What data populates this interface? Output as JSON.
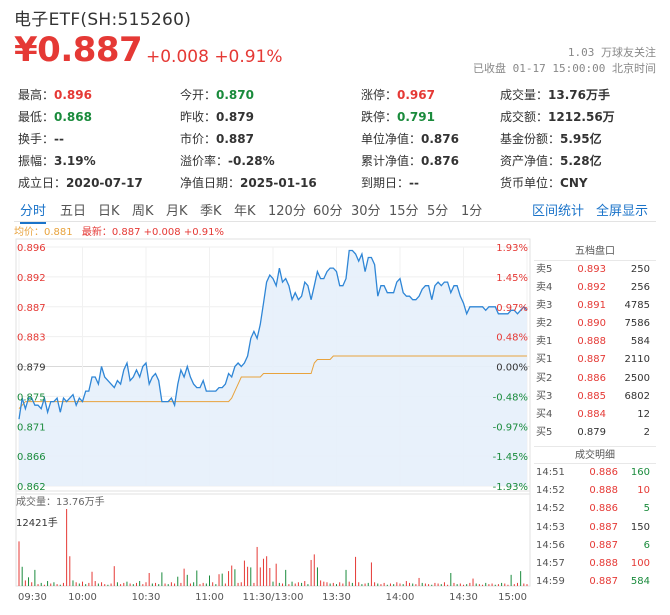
{
  "header": {
    "title": "电子ETF(SH:515260)",
    "price": "¥0.887",
    "change": "+0.008 +0.91%",
    "followers_num": "1.03",
    "followers_label": "万球友关注",
    "status_text": "已收盘",
    "status_time": "01-17 15:00:00",
    "status_tz": "北京时间"
  },
  "quote": {
    "rows": [
      [
        {
          "label": "最高：",
          "value": "0.896",
          "color": "red"
        },
        {
          "label": "今开：",
          "value": "0.870",
          "color": "green"
        },
        {
          "label": "涨停：",
          "value": "0.967",
          "color": "red"
        },
        {
          "label": "成交量：",
          "value": "13.76万手",
          "color": ""
        }
      ],
      [
        {
          "label": "最低：",
          "value": "0.868",
          "color": "green"
        },
        {
          "label": "昨收：",
          "value": "0.879",
          "color": ""
        },
        {
          "label": "跌停：",
          "value": "0.791",
          "color": "green"
        },
        {
          "label": "成交额：",
          "value": "1212.56万",
          "color": ""
        }
      ],
      [
        {
          "label": "换手：",
          "value": "--",
          "color": ""
        },
        {
          "label": "市价：",
          "value": "0.887",
          "color": ""
        },
        {
          "label": "单位净值：",
          "value": "0.876",
          "color": ""
        },
        {
          "label": "基金份额：",
          "value": "5.95亿",
          "color": ""
        }
      ],
      [
        {
          "label": "振幅：",
          "value": "3.19%",
          "color": ""
        },
        {
          "label": "溢价率：",
          "value": "-0.28%",
          "color": ""
        },
        {
          "label": "累计净值：",
          "value": "0.876",
          "color": ""
        },
        {
          "label": "资产净值：",
          "value": "5.28亿",
          "color": ""
        }
      ],
      [
        {
          "label": "成立日：",
          "value": "2020-07-17",
          "color": ""
        },
        {
          "label": "净值日期：",
          "value": "2025-01-16",
          "color": ""
        },
        {
          "label": "到期日：",
          "value": "--",
          "color": ""
        },
        {
          "label": "货币单位：",
          "value": "CNY",
          "color": ""
        }
      ]
    ]
  },
  "tabs": [
    "分时",
    "五日",
    "日K",
    "周K",
    "月K",
    "季K",
    "年K",
    "120分",
    "60分",
    "30分",
    "15分",
    "5分",
    "1分"
  ],
  "active_tab": "分时",
  "tabs_right": [
    "区间统计",
    "全屏显示"
  ],
  "legend": {
    "avg": "均价：0.881",
    "last": "最新：0.887 +0.008 +0.91%"
  },
  "colors": {
    "up": "#e53935",
    "down": "#1a8b3c",
    "price_line": "#2f86d6",
    "avg_line": "#e8a33d",
    "accent": "#1a73c9"
  },
  "chart_data": {
    "type": "line",
    "prev_close": 0.879,
    "y_ticks": [
      "0.896",
      "0.892",
      "0.887",
      "0.883",
      "0.879",
      "0.875",
      "0.871",
      "0.866",
      "0.862"
    ],
    "pct_ticks": [
      "1.93%",
      "1.45%",
      "0.97%",
      "0.48%",
      "0.00%",
      "-0.48%",
      "-0.97%",
      "-1.45%",
      "-1.93%"
    ],
    "ylim": [
      0.862,
      0.896
    ],
    "x_ticks": [
      "09:30",
      "10:00",
      "10:30",
      "11:00",
      "11:30/13:00",
      "13:30",
      "14:00",
      "14:30",
      "15:00"
    ],
    "price_series": [
      0.8715,
      0.8745,
      0.873,
      0.8745,
      0.8745,
      0.8735,
      0.8735,
      0.873,
      0.8745,
      0.8725,
      0.874,
      0.874,
      0.8745,
      0.8725,
      0.8745,
      0.874,
      0.8745,
      0.875,
      0.8735,
      0.8745,
      0.874,
      0.8755,
      0.8755,
      0.8775,
      0.8775,
      0.8765,
      0.879,
      0.8775,
      0.877,
      0.8765,
      0.876,
      0.877,
      0.8765,
      0.8785,
      0.8795,
      0.877,
      0.8775,
      0.8785,
      0.8775,
      0.879,
      0.8795,
      0.8765,
      0.8775,
      0.878,
      0.877,
      0.874,
      0.874,
      0.874,
      0.8745,
      0.8735,
      0.8765,
      0.8785,
      0.8775,
      0.879,
      0.8775,
      0.8765,
      0.876,
      0.876,
      0.877,
      0.8755,
      0.8755,
      0.8755,
      0.8755,
      0.876,
      0.876,
      0.8765,
      0.878,
      0.8775,
      0.879,
      0.8795,
      0.879,
      0.8795,
      0.8805,
      0.883,
      0.884,
      0.883,
      0.885,
      0.888,
      0.891,
      0.892,
      0.8915,
      0.8905,
      0.893,
      0.891,
      0.8915,
      0.8905,
      0.8885,
      0.8895,
      0.8885,
      0.889,
      0.891,
      0.8905,
      0.8885,
      0.8905,
      0.8925,
      0.8915,
      0.8915,
      0.8925,
      0.893,
      0.893,
      0.8925,
      0.8905,
      0.8905,
      0.8915,
      0.8955,
      0.8955,
      0.895,
      0.894,
      0.895,
      0.8925,
      0.8945,
      0.8945,
      0.8935,
      0.889,
      0.8905,
      0.8905,
      0.8895,
      0.8895,
      0.8895,
      0.891,
      0.8915,
      0.8895,
      0.889,
      0.889,
      0.8885,
      0.8885,
      0.889,
      0.89,
      0.8905,
      0.8905,
      0.8885,
      0.8905,
      0.891,
      0.8905,
      0.891,
      0.891,
      0.8895,
      0.8905,
      0.8905,
      0.889,
      0.888,
      0.8865,
      0.8875,
      0.8875,
      0.8875,
      0.8875,
      0.8875,
      0.887,
      0.8875,
      0.8875,
      0.8875,
      0.8865,
      0.8865,
      0.8865,
      0.8865,
      0.887,
      0.887,
      0.8865,
      0.887,
      0.8875,
      0.887
    ],
    "avg_series": [
      0.873,
      0.8735,
      0.874,
      0.874,
      0.874,
      0.874,
      0.874,
      0.874,
      0.874,
      0.874,
      0.874,
      0.874,
      0.874,
      0.874,
      0.874,
      0.874,
      0.874,
      0.874,
      0.874,
      0.874,
      0.874,
      0.874,
      0.874,
      0.874,
      0.874,
      0.874,
      0.874,
      0.874,
      0.874,
      0.874,
      0.874,
      0.874,
      0.874,
      0.874,
      0.874,
      0.874,
      0.874,
      0.874,
      0.874,
      0.874,
      0.874,
      0.874,
      0.874,
      0.874,
      0.874,
      0.874,
      0.874,
      0.874,
      0.874,
      0.874,
      0.874,
      0.874,
      0.874,
      0.874,
      0.874,
      0.874,
      0.874,
      0.874,
      0.874,
      0.874,
      0.874,
      0.874,
      0.874,
      0.874,
      0.874,
      0.874,
      0.874,
      0.8745,
      0.8755,
      0.8765,
      0.8775,
      0.8775,
      0.8775,
      0.8775,
      0.8775,
      0.8775,
      0.8775,
      0.878,
      0.878,
      0.878,
      0.878,
      0.878,
      0.878,
      0.878,
      0.878,
      0.878,
      0.878,
      0.878,
      0.878,
      0.878,
      0.878,
      0.878,
      0.878,
      0.8795,
      0.88,
      0.88,
      0.88,
      0.88,
      0.88,
      0.8805,
      0.8805,
      0.8805,
      0.8805,
      0.8805,
      0.8805,
      0.8805,
      0.8805,
      0.8805,
      0.8805,
      0.8805,
      0.8805,
      0.8805,
      0.8805,
      0.8805,
      0.8805,
      0.8805,
      0.8805,
      0.8805,
      0.8805,
      0.8805,
      0.8805,
      0.8805,
      0.8805,
      0.8805,
      0.8805,
      0.8805,
      0.8805,
      0.8805,
      0.8805,
      0.8805,
      0.8805,
      0.8805,
      0.8805,
      0.8805,
      0.8805,
      0.8805,
      0.8805,
      0.8805,
      0.8805,
      0.8805,
      0.8805,
      0.8805,
      0.8805,
      0.8805,
      0.8805,
      0.8805,
      0.8805,
      0.8805,
      0.8805,
      0.8805,
      0.8805,
      0.8805,
      0.8805,
      0.8805,
      0.8805,
      0.8805,
      0.8805,
      0.8805,
      0.8805,
      0.8805,
      0.8805
    ],
    "volume_label": "成交量：13.76万手",
    "volume_max_label": "12421手",
    "volume_max": 12421,
    "volume_series": [
      [
        7200,
        "r"
      ],
      [
        3100,
        "g"
      ],
      [
        900,
        "r"
      ],
      [
        1400,
        "g"
      ],
      [
        600,
        "r"
      ],
      [
        2600,
        "g"
      ],
      [
        300,
        "r"
      ],
      [
        500,
        "g"
      ],
      [
        200,
        "r"
      ],
      [
        800,
        "g"
      ],
      [
        400,
        "r"
      ],
      [
        600,
        "g"
      ],
      [
        300,
        "r"
      ],
      [
        200,
        "g"
      ],
      [
        500,
        "r"
      ],
      [
        12421,
        "r"
      ],
      [
        4800,
        "r"
      ],
      [
        900,
        "g"
      ],
      [
        600,
        "r"
      ],
      [
        400,
        "g"
      ],
      [
        700,
        "r"
      ],
      [
        300,
        "g"
      ],
      [
        500,
        "r"
      ],
      [
        2300,
        "r"
      ],
      [
        800,
        "r"
      ],
      [
        400,
        "g"
      ],
      [
        600,
        "r"
      ],
      [
        300,
        "r"
      ],
      [
        200,
        "g"
      ],
      [
        400,
        "r"
      ],
      [
        3200,
        "r"
      ],
      [
        600,
        "g"
      ],
      [
        300,
        "r"
      ],
      [
        500,
        "r"
      ],
      [
        700,
        "g"
      ],
      [
        400,
        "r"
      ],
      [
        300,
        "g"
      ],
      [
        500,
        "r"
      ],
      [
        800,
        "g"
      ],
      [
        300,
        "r"
      ],
      [
        600,
        "r"
      ],
      [
        2100,
        "r"
      ],
      [
        400,
        "g"
      ],
      [
        500,
        "r"
      ],
      [
        300,
        "g"
      ],
      [
        2200,
        "g"
      ],
      [
        400,
        "r"
      ],
      [
        300,
        "g"
      ],
      [
        600,
        "r"
      ],
      [
        400,
        "r"
      ],
      [
        1500,
        "g"
      ],
      [
        500,
        "r"
      ],
      [
        2800,
        "r"
      ],
      [
        1800,
        "g"
      ],
      [
        400,
        "r"
      ],
      [
        600,
        "g"
      ],
      [
        2500,
        "g"
      ],
      [
        300,
        "r"
      ],
      [
        500,
        "r"
      ],
      [
        400,
        "g"
      ],
      [
        1700,
        "g"
      ],
      [
        600,
        "r"
      ],
      [
        300,
        "g"
      ],
      [
        1900,
        "r"
      ],
      [
        2000,
        "g"
      ],
      [
        400,
        "r"
      ],
      [
        2400,
        "r"
      ],
      [
        3300,
        "r"
      ],
      [
        2700,
        "g"
      ],
      [
        500,
        "r"
      ],
      [
        600,
        "r"
      ],
      [
        4100,
        "r"
      ],
      [
        3100,
        "r"
      ],
      [
        3000,
        "g"
      ],
      [
        500,
        "r"
      ],
      [
        6300,
        "r"
      ],
      [
        3000,
        "r"
      ],
      [
        4400,
        "r"
      ],
      [
        4800,
        "r"
      ],
      [
        2900,
        "r"
      ],
      [
        700,
        "g"
      ],
      [
        3600,
        "r"
      ],
      [
        500,
        "g"
      ],
      [
        400,
        "r"
      ],
      [
        2600,
        "g"
      ],
      [
        300,
        "r"
      ],
      [
        700,
        "g"
      ],
      [
        400,
        "r"
      ],
      [
        600,
        "r"
      ],
      [
        500,
        "g"
      ],
      [
        800,
        "r"
      ],
      [
        300,
        "g"
      ],
      [
        4200,
        "r"
      ],
      [
        5100,
        "r"
      ],
      [
        3000,
        "g"
      ],
      [
        900,
        "r"
      ],
      [
        700,
        "r"
      ],
      [
        600,
        "r"
      ],
      [
        400,
        "g"
      ],
      [
        500,
        "r"
      ],
      [
        300,
        "g"
      ],
      [
        600,
        "r"
      ],
      [
        400,
        "r"
      ],
      [
        2600,
        "g"
      ],
      [
        700,
        "r"
      ],
      [
        500,
        "g"
      ],
      [
        4700,
        "r"
      ],
      [
        600,
        "r"
      ],
      [
        300,
        "g"
      ],
      [
        400,
        "r"
      ],
      [
        500,
        "g"
      ],
      [
        3800,
        "r"
      ],
      [
        600,
        "r"
      ],
      [
        400,
        "g"
      ],
      [
        300,
        "r"
      ],
      [
        500,
        "r"
      ],
      [
        200,
        "g"
      ],
      [
        400,
        "r"
      ],
      [
        300,
        "g"
      ],
      [
        600,
        "r"
      ],
      [
        400,
        "r"
      ],
      [
        300,
        "g"
      ],
      [
        800,
        "r"
      ],
      [
        500,
        "r"
      ],
      [
        400,
        "g"
      ],
      [
        300,
        "r"
      ],
      [
        1300,
        "r"
      ],
      [
        500,
        "g"
      ],
      [
        400,
        "r"
      ],
      [
        300,
        "r"
      ],
      [
        200,
        "g"
      ],
      [
        500,
        "r"
      ],
      [
        400,
        "r"
      ],
      [
        300,
        "g"
      ],
      [
        600,
        "r"
      ],
      [
        200,
        "r"
      ],
      [
        2100,
        "g"
      ],
      [
        500,
        "r"
      ],
      [
        300,
        "g"
      ],
      [
        400,
        "r"
      ],
      [
        200,
        "r"
      ],
      [
        300,
        "g"
      ],
      [
        500,
        "r"
      ],
      [
        1200,
        "r"
      ],
      [
        400,
        "g"
      ],
      [
        300,
        "r"
      ],
      [
        200,
        "r"
      ],
      [
        500,
        "g"
      ],
      [
        300,
        "r"
      ],
      [
        400,
        "r"
      ],
      [
        200,
        "g"
      ],
      [
        300,
        "r"
      ],
      [
        500,
        "g"
      ],
      [
        400,
        "r"
      ],
      [
        200,
        "r"
      ],
      [
        1800,
        "g"
      ],
      [
        300,
        "r"
      ],
      [
        500,
        "r"
      ],
      [
        2400,
        "g"
      ],
      [
        400,
        "r"
      ],
      [
        300,
        "r"
      ]
    ]
  },
  "order_book": {
    "title": "五档盘口",
    "rows": [
      {
        "label": "卖5",
        "price": "0.893",
        "qty": "250",
        "color": "red"
      },
      {
        "label": "卖4",
        "price": "0.892",
        "qty": "256",
        "color": "red"
      },
      {
        "label": "卖3",
        "price": "0.891",
        "qty": "4785",
        "color": "red"
      },
      {
        "label": "卖2",
        "price": "0.890",
        "qty": "7586",
        "color": "red"
      },
      {
        "label": "卖1",
        "price": "0.888",
        "qty": "584",
        "color": "red"
      },
      {
        "label": "买1",
        "price": "0.887",
        "qty": "2110",
        "color": "red"
      },
      {
        "label": "买2",
        "price": "0.886",
        "qty": "2500",
        "color": "red"
      },
      {
        "label": "买3",
        "price": "0.885",
        "qty": "6802",
        "color": "red"
      },
      {
        "label": "买4",
        "price": "0.884",
        "qty": "12",
        "color": "red"
      },
      {
        "label": "买5",
        "price": "0.879",
        "qty": "2",
        "color": ""
      }
    ]
  },
  "trades": {
    "title": "成交明细",
    "rows": [
      {
        "time": "14:51",
        "price": "0.886",
        "qty": "160",
        "pcolor": "red",
        "qcolor": "green"
      },
      {
        "time": "14:52",
        "price": "0.888",
        "qty": "10",
        "pcolor": "red",
        "qcolor": "red"
      },
      {
        "time": "14:52",
        "price": "0.886",
        "qty": "5",
        "pcolor": "red",
        "qcolor": "green"
      },
      {
        "time": "14:53",
        "price": "0.887",
        "qty": "150",
        "pcolor": "red",
        "qcolor": ""
      },
      {
        "time": "14:56",
        "price": "0.887",
        "qty": "6",
        "pcolor": "red",
        "qcolor": "green"
      },
      {
        "time": "14:57",
        "price": "0.888",
        "qty": "100",
        "pcolor": "red",
        "qcolor": "red"
      },
      {
        "time": "14:59",
        "price": "0.887",
        "qty": "584",
        "pcolor": "red",
        "qcolor": "green"
      }
    ]
  }
}
